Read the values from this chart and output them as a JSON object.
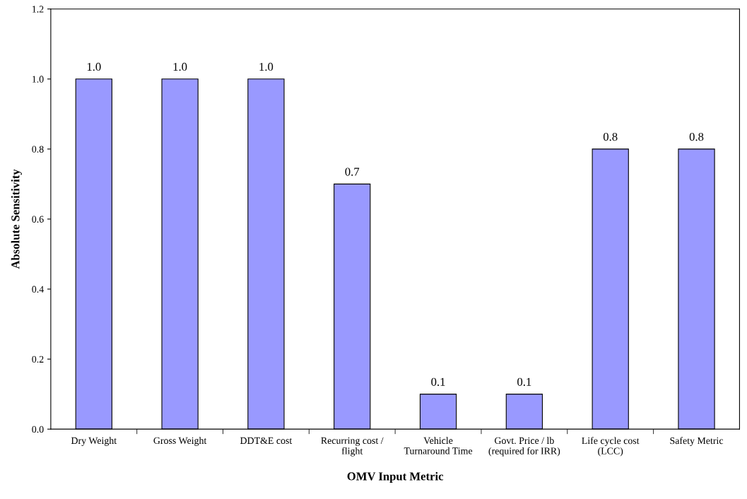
{
  "chart_data": {
    "type": "bar",
    "xlabel": "OMV Input Metric",
    "ylabel": "Absolute Sensitivity",
    "categories": [
      "Dry Weight",
      "Gross Weight",
      "DDT&E cost",
      "Recurring cost /\nflight",
      "Vehicle\nTurnaround Time",
      "Govt. Price / lb\n(required for IRR)",
      "Life cycle cost\n(LCC)",
      "Safety Metric"
    ],
    "values": [
      1.0,
      1.0,
      1.0,
      0.7,
      0.1,
      0.1,
      0.8,
      0.8
    ],
    "value_labels": [
      "1.0",
      "1.0",
      "1.0",
      "0.7",
      "0.1",
      "0.1",
      "0.8",
      "0.8"
    ],
    "color": "#9999ff",
    "ylim": [
      0,
      1.2
    ],
    "yticks": [
      {
        "value": 0,
        "label": "0.0"
      },
      {
        "value": 0.2,
        "label": "0.2"
      },
      {
        "value": 0.4,
        "label": "0.4"
      },
      {
        "value": 0.6,
        "label": "0.6"
      },
      {
        "value": 0.8,
        "label": "0.8"
      },
      {
        "value": 1.0,
        "label": "1.0"
      },
      {
        "value": 1.2,
        "label": "1.2"
      }
    ],
    "grid": false
  }
}
